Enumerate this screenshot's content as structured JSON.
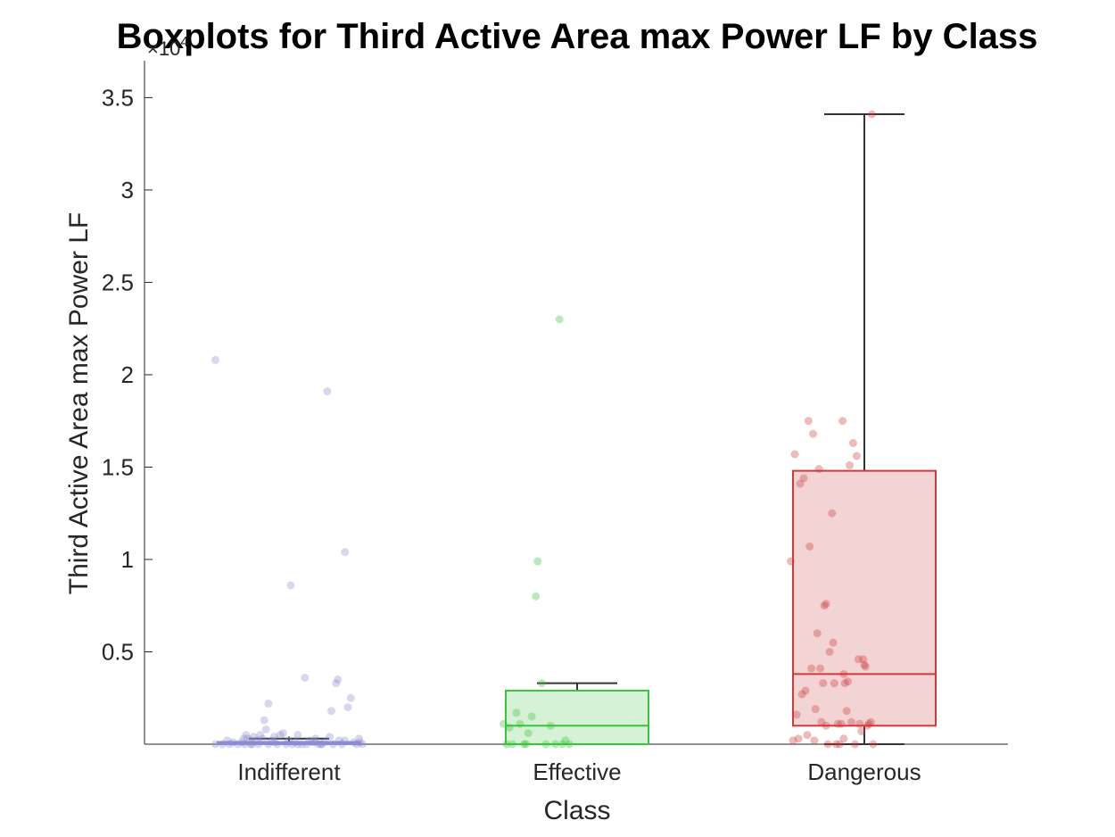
{
  "chart_data": {
    "type": "boxplot",
    "title": "Boxplots for Third Active Area max Power LF by Class",
    "xlabel": "Class",
    "ylabel": "Third Active Area max Power LF",
    "y_exponent_label": "×10",
    "y_exponent_power": "4",
    "y_multiplier": 10000,
    "ylim": [
      0,
      3.7
    ],
    "yticks": [
      0.5,
      1,
      1.5,
      2,
      2.5,
      3,
      3.5
    ],
    "ytick_labels": [
      "0.5",
      "1",
      "1.5",
      "2",
      "2.5",
      "3",
      "3.5"
    ],
    "grid": false,
    "categories": [
      "Indifferent",
      "Effective",
      "Dangerous"
    ],
    "boxes": [
      {
        "name": "Indifferent",
        "color": "#8c8cd0",
        "fill": "#d9d9f0",
        "min": 0,
        "q1": 0.0,
        "median": 0.003,
        "q3": 0.012,
        "max": 0.03,
        "points": [
          [
            0.0,
            2.08
          ],
          [
            0.0,
            0.0
          ],
          [
            0.12,
            0.0
          ],
          [
            0.24,
            0.0
          ],
          [
            0.3,
            0.01
          ],
          [
            0.38,
            0.0
          ],
          [
            0.45,
            0.01
          ],
          [
            0.5,
            0.0
          ],
          [
            0.48,
            0.03
          ],
          [
            0.52,
            0.05
          ],
          [
            0.55,
            0.03
          ],
          [
            0.6,
            0.02
          ],
          [
            0.62,
            0.0
          ],
          [
            0.65,
            0.04
          ],
          [
            0.7,
            0.02
          ],
          [
            0.73,
            0.0
          ],
          [
            0.76,
            0.05
          ],
          [
            0.8,
            0.03
          ],
          [
            0.83,
            0.13
          ],
          [
            0.86,
            0.08
          ],
          [
            0.9,
            0.22
          ],
          [
            0.95,
            0.02
          ],
          [
            1.0,
            0.01
          ],
          [
            1.05,
            0.0
          ],
          [
            1.1,
            0.05
          ],
          [
            1.15,
            0.06
          ],
          [
            1.2,
            0.0
          ],
          [
            1.24,
            0.02
          ],
          [
            1.28,
            0.86
          ],
          [
            1.35,
            0.01
          ],
          [
            1.4,
            0.0
          ],
          [
            1.47,
            0.0
          ],
          [
            1.52,
            0.36
          ],
          [
            1.55,
            0.0
          ],
          [
            1.6,
            0.02
          ],
          [
            1.64,
            0.01
          ],
          [
            1.7,
            0.03
          ],
          [
            1.75,
            0.0
          ],
          [
            1.8,
            0.0
          ],
          [
            1.85,
            0.01
          ],
          [
            1.9,
            1.91
          ],
          [
            1.94,
            0.04
          ],
          [
            1.97,
            0.18
          ],
          [
            2.0,
            0.0
          ],
          [
            2.05,
            0.33
          ],
          [
            2.08,
            0.35
          ],
          [
            2.1,
            0.02
          ],
          [
            2.15,
            0.0
          ],
          [
            2.2,
            1.04
          ],
          [
            2.25,
            0.2
          ],
          [
            2.3,
            0.25
          ],
          [
            2.35,
            0.01
          ],
          [
            2.4,
            0.0
          ],
          [
            2.44,
            0.03
          ],
          [
            2.5,
            0.0
          ],
          [
            0.2,
            0.02
          ],
          [
            0.6,
            0.0
          ],
          [
            1.0,
            0.04
          ],
          [
            1.4,
            0.05
          ],
          [
            1.8,
            0.0
          ],
          [
            2.2,
            0.02
          ],
          [
            0.9,
            0.0
          ],
          [
            1.3,
            0.0
          ],
          [
            1.7,
            0.01
          ],
          [
            2.45,
            0.01
          ]
        ]
      },
      {
        "name": "Effective",
        "color": "#3ac43a",
        "fill": "#d6f2d6",
        "min": 0,
        "q1": 0.0,
        "median": 0.1,
        "q3": 0.29,
        "max": 0.33,
        "points": [
          [
            0.0,
            0.11
          ],
          [
            0.05,
            0.0
          ],
          [
            0.1,
            0.09
          ],
          [
            0.15,
            0.0
          ],
          [
            0.22,
            0.17
          ],
          [
            0.28,
            0.11
          ],
          [
            0.35,
            0.0
          ],
          [
            0.38,
            0.0
          ],
          [
            0.42,
            0.06
          ],
          [
            0.48,
            0.15
          ],
          [
            0.55,
            0.8
          ],
          [
            0.58,
            0.99
          ],
          [
            0.65,
            0.33
          ],
          [
            0.72,
            0.0
          ],
          [
            0.8,
            0.1
          ],
          [
            0.88,
            0.0
          ],
          [
            0.95,
            2.3
          ],
          [
            1.0,
            0.0
          ],
          [
            1.05,
            0.02
          ],
          [
            1.12,
            0.0
          ]
        ]
      },
      {
        "name": "Dangerous",
        "color": "#d03a3a",
        "fill": "#f2d4d4",
        "min": 0,
        "q1": 0.1,
        "median": 0.38,
        "q3": 1.48,
        "max": 3.41,
        "points": [
          [
            0.0,
            0.99
          ],
          [
            0.04,
            0.02
          ],
          [
            0.07,
            1.57
          ],
          [
            0.1,
            0.16
          ],
          [
            0.13,
            0.03
          ],
          [
            0.16,
            1.41
          ],
          [
            0.19,
            0.27
          ],
          [
            0.22,
            1.44
          ],
          [
            0.25,
            0.29
          ],
          [
            0.28,
            0.05
          ],
          [
            0.3,
            1.75
          ],
          [
            0.32,
            1.07
          ],
          [
            0.35,
            0.41
          ],
          [
            0.38,
            1.68
          ],
          [
            0.4,
            0.02
          ],
          [
            0.42,
            0.19
          ],
          [
            0.45,
            0.6
          ],
          [
            0.48,
            1.49
          ],
          [
            0.5,
            0.41
          ],
          [
            0.52,
            0.12
          ],
          [
            0.55,
            0.33
          ],
          [
            0.57,
            0.75
          ],
          [
            0.6,
            0.76
          ],
          [
            0.63,
            0.0
          ],
          [
            0.66,
            0.5
          ],
          [
            0.7,
            1.25
          ],
          [
            0.72,
            0.55
          ],
          [
            0.74,
            0.33
          ],
          [
            0.77,
            0.0
          ],
          [
            0.8,
            0.11
          ],
          [
            0.83,
            0.0
          ],
          [
            0.86,
            0.11
          ],
          [
            0.88,
            1.75
          ],
          [
            0.9,
            0.38
          ],
          [
            0.92,
            0.33
          ],
          [
            0.95,
            0.18
          ],
          [
            0.97,
            0.34
          ],
          [
            1.0,
            1.51
          ],
          [
            1.03,
            0.12
          ],
          [
            1.06,
            1.63
          ],
          [
            1.09,
            0.0
          ],
          [
            1.12,
            1.56
          ],
          [
            1.15,
            0.46
          ],
          [
            1.17,
            0.11
          ],
          [
            1.2,
            0.07
          ],
          [
            1.23,
            0.46
          ],
          [
            1.25,
            0.43
          ],
          [
            1.27,
            0.42
          ],
          [
            1.3,
            0.1
          ],
          [
            1.33,
            0.11
          ],
          [
            1.36,
            0.12
          ],
          [
            1.38,
            3.41
          ],
          [
            1.4,
            0.0
          ],
          [
            0.6,
            0.1
          ],
          [
            0.9,
            0.03
          ]
        ]
      }
    ]
  }
}
